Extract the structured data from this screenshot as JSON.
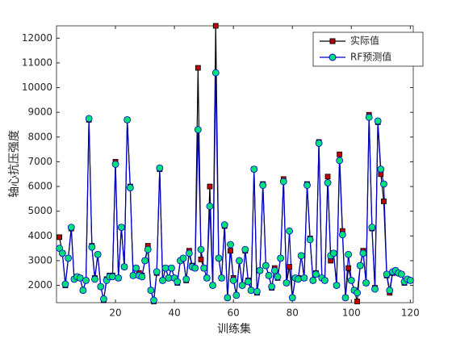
{
  "chart_data": {
    "type": "line",
    "x_label": "训练集",
    "y_label": "轴心抗压强度",
    "x": [
      1,
      2,
      3,
      4,
      5,
      6,
      7,
      8,
      9,
      10,
      11,
      12,
      13,
      14,
      15,
      16,
      17,
      18,
      19,
      20,
      21,
      22,
      23,
      24,
      25,
      26,
      27,
      28,
      29,
      30,
      31,
      32,
      33,
      34,
      35,
      36,
      37,
      38,
      39,
      40,
      41,
      42,
      43,
      44,
      45,
      46,
      47,
      48,
      49,
      50,
      51,
      52,
      53,
      54,
      55,
      56,
      57,
      58,
      59,
      60,
      61,
      62,
      63,
      64,
      65,
      66,
      67,
      68,
      69,
      70,
      71,
      72,
      73,
      74,
      75,
      76,
      77,
      78,
      79,
      80,
      81,
      82,
      83,
      84,
      85,
      86,
      87,
      88,
      89,
      90,
      91,
      92,
      93,
      94,
      95,
      96,
      97,
      98,
      99,
      100,
      101,
      102,
      103,
      104,
      105,
      106,
      107,
      108,
      109,
      110,
      111,
      112,
      113,
      114,
      115,
      116,
      117,
      118,
      119,
      120
    ],
    "series": [
      {
        "name": "实际值",
        "color": "#000000",
        "marker_color": "#c00000",
        "marker": "square",
        "values": [
          3950,
          3300,
          2000,
          3100,
          4300,
          2250,
          2350,
          2300,
          1800,
          2200,
          8700,
          3600,
          2300,
          3250,
          1950,
          1400,
          2250,
          2400,
          2400,
          7000,
          2300,
          4350,
          2750,
          8700,
          6000,
          2400,
          2700,
          2500,
          2400,
          3000,
          3600,
          1800,
          1350,
          2500,
          6700,
          2200,
          2700,
          2300,
          2700,
          2300,
          2100,
          3000,
          3100,
          2200,
          3400,
          2800,
          2700,
          10800,
          3050,
          2700,
          2300,
          6000,
          2000,
          12500,
          3100,
          2300,
          4400,
          1500,
          3400,
          2300,
          1600,
          3000,
          2000,
          3400,
          2200,
          1800,
          6700,
          1700,
          2600,
          6100,
          2800,
          2400,
          1900,
          2700,
          2300,
          3100,
          6300,
          2100,
          2750,
          1500,
          2300,
          2300,
          3200,
          2300,
          6100,
          3900,
          2200,
          2500,
          7800,
          2300,
          2200,
          6400,
          3000,
          3300,
          2000,
          7300,
          4200,
          1500,
          2700,
          2200,
          1800,
          1350,
          2800,
          3400,
          2100,
          8900,
          4300,
          1900,
          8600,
          6500,
          5400,
          2400,
          1700,
          2500,
          2600,
          2500,
          2450,
          2100,
          2200,
          2200
        ]
      },
      {
        "name": "RF预测值",
        "color": "#0000cc",
        "marker_color": "#00e07a",
        "marker": "circle",
        "values": [
          3500,
          3300,
          2050,
          3100,
          4350,
          2250,
          2350,
          2300,
          1800,
          2200,
          8750,
          3550,
          2250,
          3250,
          1950,
          1450,
          2200,
          2350,
          2350,
          6900,
          2300,
          4350,
          2750,
          8700,
          5950,
          2400,
          2700,
          2400,
          2350,
          3000,
          3450,
          1800,
          1400,
          2550,
          6750,
          2200,
          2700,
          2300,
          2700,
          2300,
          2150,
          3000,
          3100,
          2250,
          3300,
          2750,
          2700,
          8300,
          3450,
          2700,
          2300,
          5200,
          2000,
          10600,
          3100,
          2300,
          4450,
          1500,
          3650,
          2200,
          1600,
          3000,
          2000,
          3450,
          2150,
          1800,
          6700,
          1750,
          2600,
          6050,
          2800,
          2400,
          1950,
          2600,
          2350,
          3100,
          6200,
          2100,
          4200,
          1500,
          2300,
          2250,
          3200,
          2300,
          6050,
          3850,
          2200,
          2450,
          7750,
          2300,
          2200,
          6150,
          3200,
          3300,
          2000,
          7050,
          4050,
          1500,
          3250,
          2200,
          1800,
          1700,
          2800,
          3300,
          2100,
          8800,
          4350,
          1850,
          8650,
          6700,
          6100,
          2450,
          1800,
          2550,
          2600,
          2500,
          2450,
          2150,
          2250,
          2200
        ]
      }
    ],
    "xlim": [
      0,
      121
    ],
    "ylim": [
      1300,
      12500
    ],
    "xticks": [
      20,
      40,
      60,
      80,
      100,
      120
    ],
    "yticks": [
      2000,
      3000,
      4000,
      5000,
      6000,
      7000,
      8000,
      9000,
      10000,
      11000,
      12000
    ],
    "legend": "upper right"
  }
}
